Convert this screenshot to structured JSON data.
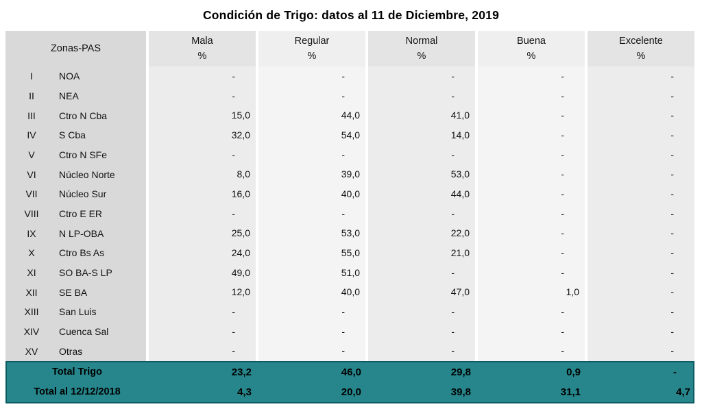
{
  "title": "Condición de Trigo: datos al 11 de Diciembre, 2019",
  "header": {
    "zone_label": "Zonas-PAS",
    "conditions": [
      "Mala",
      "Regular",
      "Normal",
      "Buena",
      "Excelente"
    ],
    "unit": "%"
  },
  "rows": [
    {
      "numeral": "I",
      "zone": "NOA",
      "values": [
        "-",
        "-",
        "-",
        "-",
        "-"
      ]
    },
    {
      "numeral": "II",
      "zone": "NEA",
      "values": [
        "-",
        "-",
        "-",
        "-",
        "-"
      ]
    },
    {
      "numeral": "III",
      "zone": "Ctro N Cba",
      "values": [
        "15,0",
        "44,0",
        "41,0",
        "-",
        "-"
      ]
    },
    {
      "numeral": "IV",
      "zone": "S Cba",
      "values": [
        "32,0",
        "54,0",
        "14,0",
        "-",
        "-"
      ]
    },
    {
      "numeral": "V",
      "zone": "Ctro N SFe",
      "values": [
        "-",
        "-",
        "-",
        "-",
        "-"
      ]
    },
    {
      "numeral": "VI",
      "zone": "Núcleo Norte",
      "values": [
        "8,0",
        "39,0",
        "53,0",
        "-",
        "-"
      ]
    },
    {
      "numeral": "VII",
      "zone": "Núcleo Sur",
      "values": [
        "16,0",
        "40,0",
        "44,0",
        "-",
        "-"
      ]
    },
    {
      "numeral": "VIII",
      "zone": "Ctro E ER",
      "values": [
        "-",
        "-",
        "-",
        "-",
        "-"
      ]
    },
    {
      "numeral": "IX",
      "zone": "N LP-OBA",
      "values": [
        "25,0",
        "53,0",
        "22,0",
        "-",
        "-"
      ]
    },
    {
      "numeral": "X",
      "zone": "Ctro Bs As",
      "values": [
        "24,0",
        "55,0",
        "21,0",
        "-",
        "-"
      ]
    },
    {
      "numeral": "XI",
      "zone": "SO BA-S LP",
      "values": [
        "49,0",
        "51,0",
        "-",
        "-",
        "-"
      ]
    },
    {
      "numeral": "XII",
      "zone": "SE BA",
      "values": [
        "12,0",
        "40,0",
        "47,0",
        "1,0",
        "-"
      ]
    },
    {
      "numeral": "XIII",
      "zone": "San Luis",
      "values": [
        "-",
        "-",
        "-",
        "-",
        "-"
      ]
    },
    {
      "numeral": "XIV",
      "zone": "Cuenca Sal",
      "values": [
        "-",
        "-",
        "-",
        "-",
        "-"
      ]
    },
    {
      "numeral": "XV",
      "zone": "Otras",
      "values": [
        "-",
        "-",
        "-",
        "-",
        "-"
      ]
    }
  ],
  "totals": [
    {
      "label": "Total Trigo",
      "values": [
        "23,2",
        "46,0",
        "29,8",
        "0,9",
        "-"
      ]
    },
    {
      "label": "Total al 12/12/2018",
      "values": [
        "4,3",
        "20,0",
        "39,8",
        "31,1",
        "4,7"
      ]
    }
  ],
  "colors": {
    "accent_teal": "#26868c",
    "teal_border": "#0d5c62",
    "zone_column_bg": "#d9d9d9",
    "column_bg_dark": "#ececec",
    "column_bg_light": "#f4f4f4"
  },
  "chart_data": {
    "type": "table",
    "title": "Condición de Trigo: datos al 11 de Diciembre, 2019",
    "columns": [
      "Zonas-PAS",
      "Mala %",
      "Regular %",
      "Normal %",
      "Buena %",
      "Excelente %"
    ],
    "rows": [
      [
        "I",
        "NOA",
        null,
        null,
        null,
        null,
        null
      ],
      [
        "II",
        "NEA",
        null,
        null,
        null,
        null,
        null
      ],
      [
        "III",
        "Ctro N Cba",
        15.0,
        44.0,
        41.0,
        null,
        null
      ],
      [
        "IV",
        "S Cba",
        32.0,
        54.0,
        14.0,
        null,
        null
      ],
      [
        "V",
        "Ctro N SFe",
        null,
        null,
        null,
        null,
        null
      ],
      [
        "VI",
        "Núcleo Norte",
        8.0,
        39.0,
        53.0,
        null,
        null
      ],
      [
        "VII",
        "Núcleo Sur",
        16.0,
        40.0,
        44.0,
        null,
        null
      ],
      [
        "VIII",
        "Ctro E ER",
        null,
        null,
        null,
        null,
        null
      ],
      [
        "IX",
        "N LP-OBA",
        25.0,
        53.0,
        22.0,
        null,
        null
      ],
      [
        "X",
        "Ctro Bs As",
        24.0,
        55.0,
        21.0,
        null,
        null
      ],
      [
        "XI",
        "SO BA-S LP",
        49.0,
        51.0,
        null,
        null,
        null
      ],
      [
        "XII",
        "SE BA",
        12.0,
        40.0,
        47.0,
        1.0,
        null
      ],
      [
        "XIII",
        "San Luis",
        null,
        null,
        null,
        null,
        null
      ],
      [
        "XIV",
        "Cuenca Sal",
        null,
        null,
        null,
        null,
        null
      ],
      [
        "XV",
        "Otras",
        null,
        null,
        null,
        null,
        null
      ]
    ],
    "totals": [
      {
        "label": "Total Trigo",
        "values": [
          23.2,
          46.0,
          29.8,
          0.9,
          null
        ]
      },
      {
        "label": "Total al 12/12/2018",
        "values": [
          4.3,
          20.0,
          39.8,
          31.1,
          4.7
        ]
      }
    ],
    "value_unit": "%",
    "decimal_separator": ","
  }
}
